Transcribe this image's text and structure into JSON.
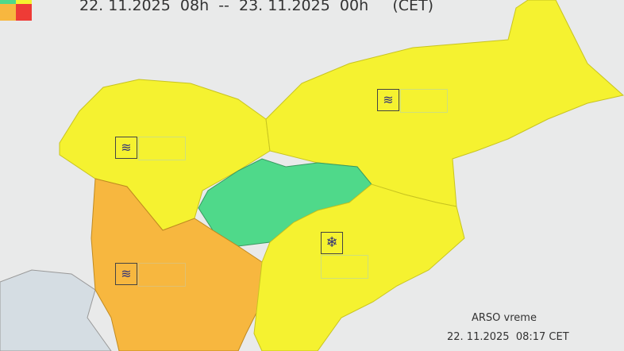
{
  "header": {
    "period": "22. 11.2025  08h  --  23. 11.2025  00h     (CET)"
  },
  "footer": {
    "source": "ARSO vreme",
    "issued": "22. 11.2025  08:17 CET"
  },
  "colors": {
    "yellow": "#f5f230",
    "orange": "#f7b73f",
    "green": "#4fd98a",
    "red": "#ee3b36",
    "sea": "#d5dde3",
    "background": "#e9eaea"
  },
  "regions": [
    {
      "name": "northwest",
      "level": "yellow"
    },
    {
      "name": "northeast",
      "level": "yellow"
    },
    {
      "name": "central",
      "level": "green"
    },
    {
      "name": "southwest",
      "level": "orange"
    },
    {
      "name": "southeast",
      "level": "yellow"
    }
  ],
  "warnings": [
    {
      "region": "northwest",
      "icon": "wind-icon"
    },
    {
      "region": "northeast",
      "icon": "wind-icon"
    },
    {
      "region": "southwest",
      "icon": "wind-icon"
    },
    {
      "region": "southeast",
      "icon": "snow-icon"
    }
  ]
}
